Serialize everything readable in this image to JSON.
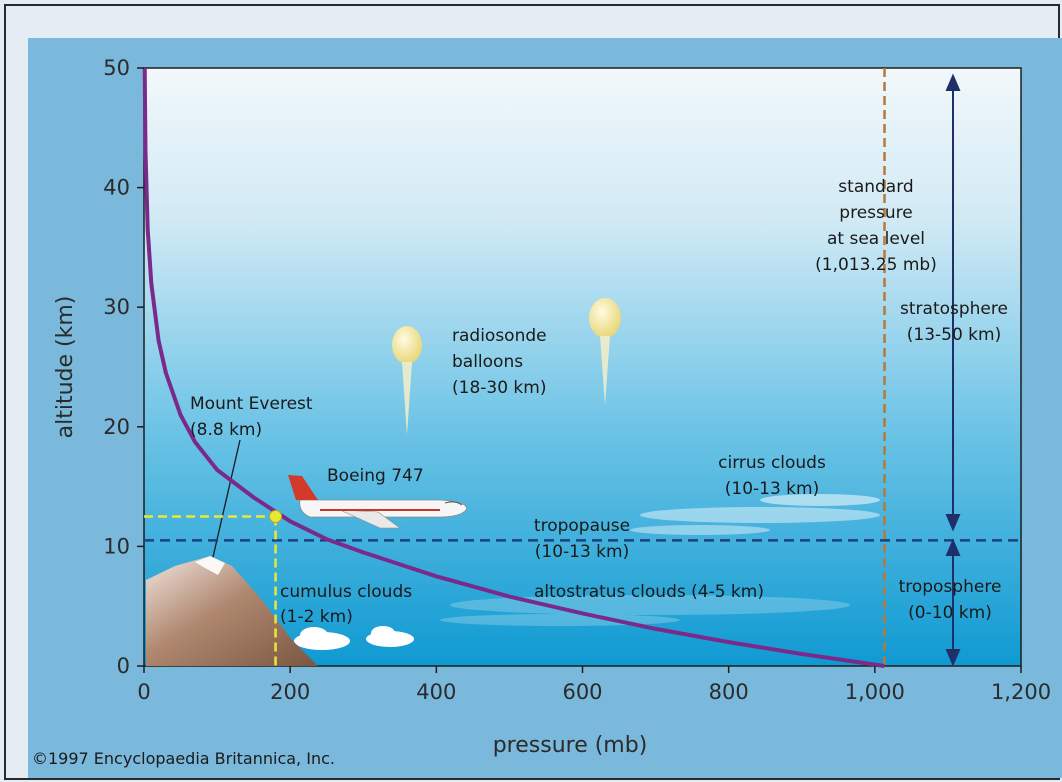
{
  "chart_data": {
    "type": "line",
    "xlabel": "pressure (mb)",
    "ylabel": "altitude (km)",
    "xlim": [
      0,
      1200
    ],
    "ylim": [
      0,
      50
    ],
    "x_ticks": [
      "0",
      "200",
      "400",
      "600",
      "800",
      "1,000",
      "1,200"
    ],
    "y_ticks": [
      "0",
      "10",
      "20",
      "30",
      "40",
      "50"
    ],
    "series": [
      {
        "points": [
          [
            1013,
            0
          ],
          [
            900,
            1
          ],
          [
            800,
            2
          ],
          [
            700,
            3.1
          ],
          [
            600,
            4.4
          ],
          [
            500,
            5.8
          ],
          [
            400,
            7.5
          ],
          [
            300,
            9.5
          ],
          [
            250,
            10.6
          ],
          [
            200,
            12.1
          ],
          [
            150,
            14.1
          ],
          [
            100,
            16.4
          ],
          [
            70,
            18.7
          ],
          [
            50,
            21
          ],
          [
            30,
            24.5
          ],
          [
            20,
            27.2
          ],
          [
            10,
            32
          ],
          [
            5,
            36.5
          ],
          [
            2,
            43
          ],
          [
            1,
            50
          ]
        ]
      }
    ],
    "reference_lines": [
      {
        "orientation": "vertical",
        "x": 1013.25,
        "style": "dashed",
        "label": "standard pressure at sea level (1,013.25 mb)"
      },
      {
        "orientation": "horizontal",
        "y": 10.5,
        "style": "dashed",
        "label": "tropopause (10-13 km)"
      }
    ],
    "highlight_point": {
      "x": 180,
      "y": 12.5
    }
  },
  "annotations": {
    "standard_pressure": [
      "standard",
      "pressure",
      "at sea level",
      "(1,013.25 mb)"
    ],
    "stratosphere": [
      "stratosphere",
      "(13-50 km)"
    ],
    "troposphere": [
      "troposphere",
      "(0-10 km)"
    ],
    "radiosonde": [
      "radiosonde",
      "balloons",
      "(18-30 km)"
    ],
    "everest": [
      "Mount Everest",
      "(8.8 km)"
    ],
    "boeing": "Boeing 747",
    "cirrus": [
      "cirrus clouds",
      "(10-13 km)"
    ],
    "tropopause": [
      "tropopause",
      "(10-13 km)"
    ],
    "cumulus": [
      "cumulus clouds",
      "(1-2 km)"
    ],
    "altostratus": "altostratus clouds (4-5 km)"
  },
  "copyright": "©1997 Encyclopaedia Britannica, Inc.",
  "colors": {
    "curve": "#7a2a8a",
    "tropopause_line": "#1f3f7a",
    "reference_dash": "#b87838",
    "highlight": "#e8e838",
    "arrows": "#1f2f6a"
  }
}
